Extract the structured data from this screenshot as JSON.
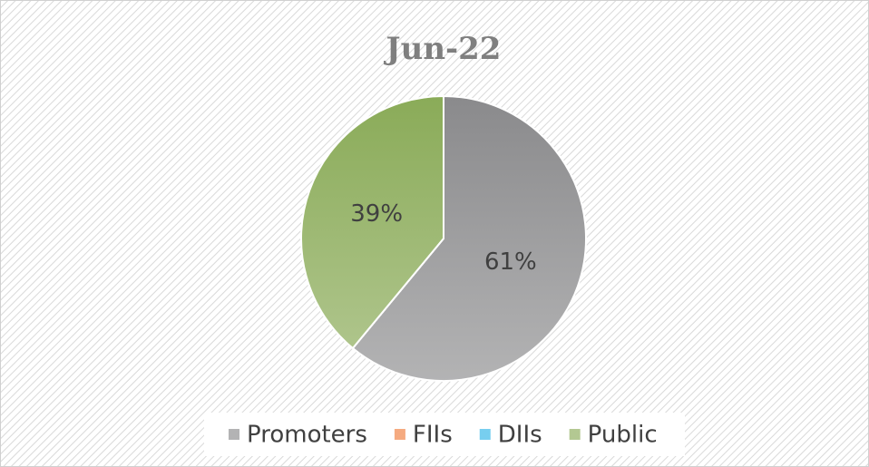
{
  "chart_data": {
    "type": "pie",
    "title": "Jun-22",
    "categories": [
      "Promoters",
      "FIIs",
      "DIIs",
      "Public"
    ],
    "values": [
      61,
      0,
      0,
      39
    ],
    "value_labels": [
      "61%",
      null,
      null,
      "39%"
    ],
    "colors": [
      "#8a8a8c",
      "#f07c3c",
      "#2eb4e6",
      "#8aab58"
    ],
    "legend": "bottom"
  }
}
